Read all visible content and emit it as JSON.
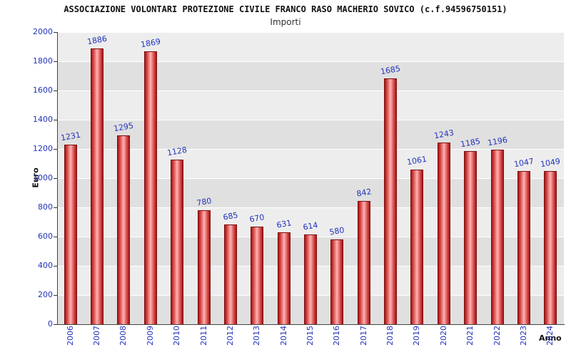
{
  "header": {
    "title": "ASSOCIAZIONE VOLONTARI PROTEZIONE CIVILE FRANCO RASO MACHERIO SOVICO (c.f.94596750151)",
    "subtitle": "Importi"
  },
  "chart_data": {
    "type": "bar",
    "title": "ASSOCIAZIONE VOLONTARI PROTEZIONE CIVILE FRANCO RASO MACHERIO SOVICO (c.f.94596750151)",
    "subtitle": "Importi",
    "xlabel": "Anno",
    "ylabel": "Euro",
    "categories": [
      "2006",
      "2007",
      "2008",
      "2009",
      "2010",
      "2011",
      "2012",
      "2013",
      "2014",
      "2015",
      "2016",
      "2017",
      "2018",
      "2019",
      "2020",
      "2021",
      "2022",
      "2023",
      "2024"
    ],
    "values": [
      1231,
      1886,
      1295,
      1869,
      1128,
      780,
      685,
      670,
      631,
      614,
      580,
      842,
      1685,
      1061,
      1243,
      1185,
      1196,
      1047,
      1049
    ],
    "ylim": [
      0,
      2000
    ],
    "ytick_step": 200,
    "grid": true,
    "legend": "none",
    "colors": {
      "bar_edge": "#7e1010",
      "bar_dark": "#a41414",
      "bar_light": "#ffb3b3",
      "tick_label": "#2233bb",
      "value_label": "#2233bb",
      "plot_band_light": "#ededed",
      "plot_band_dark": "#e0e0e0"
    }
  }
}
